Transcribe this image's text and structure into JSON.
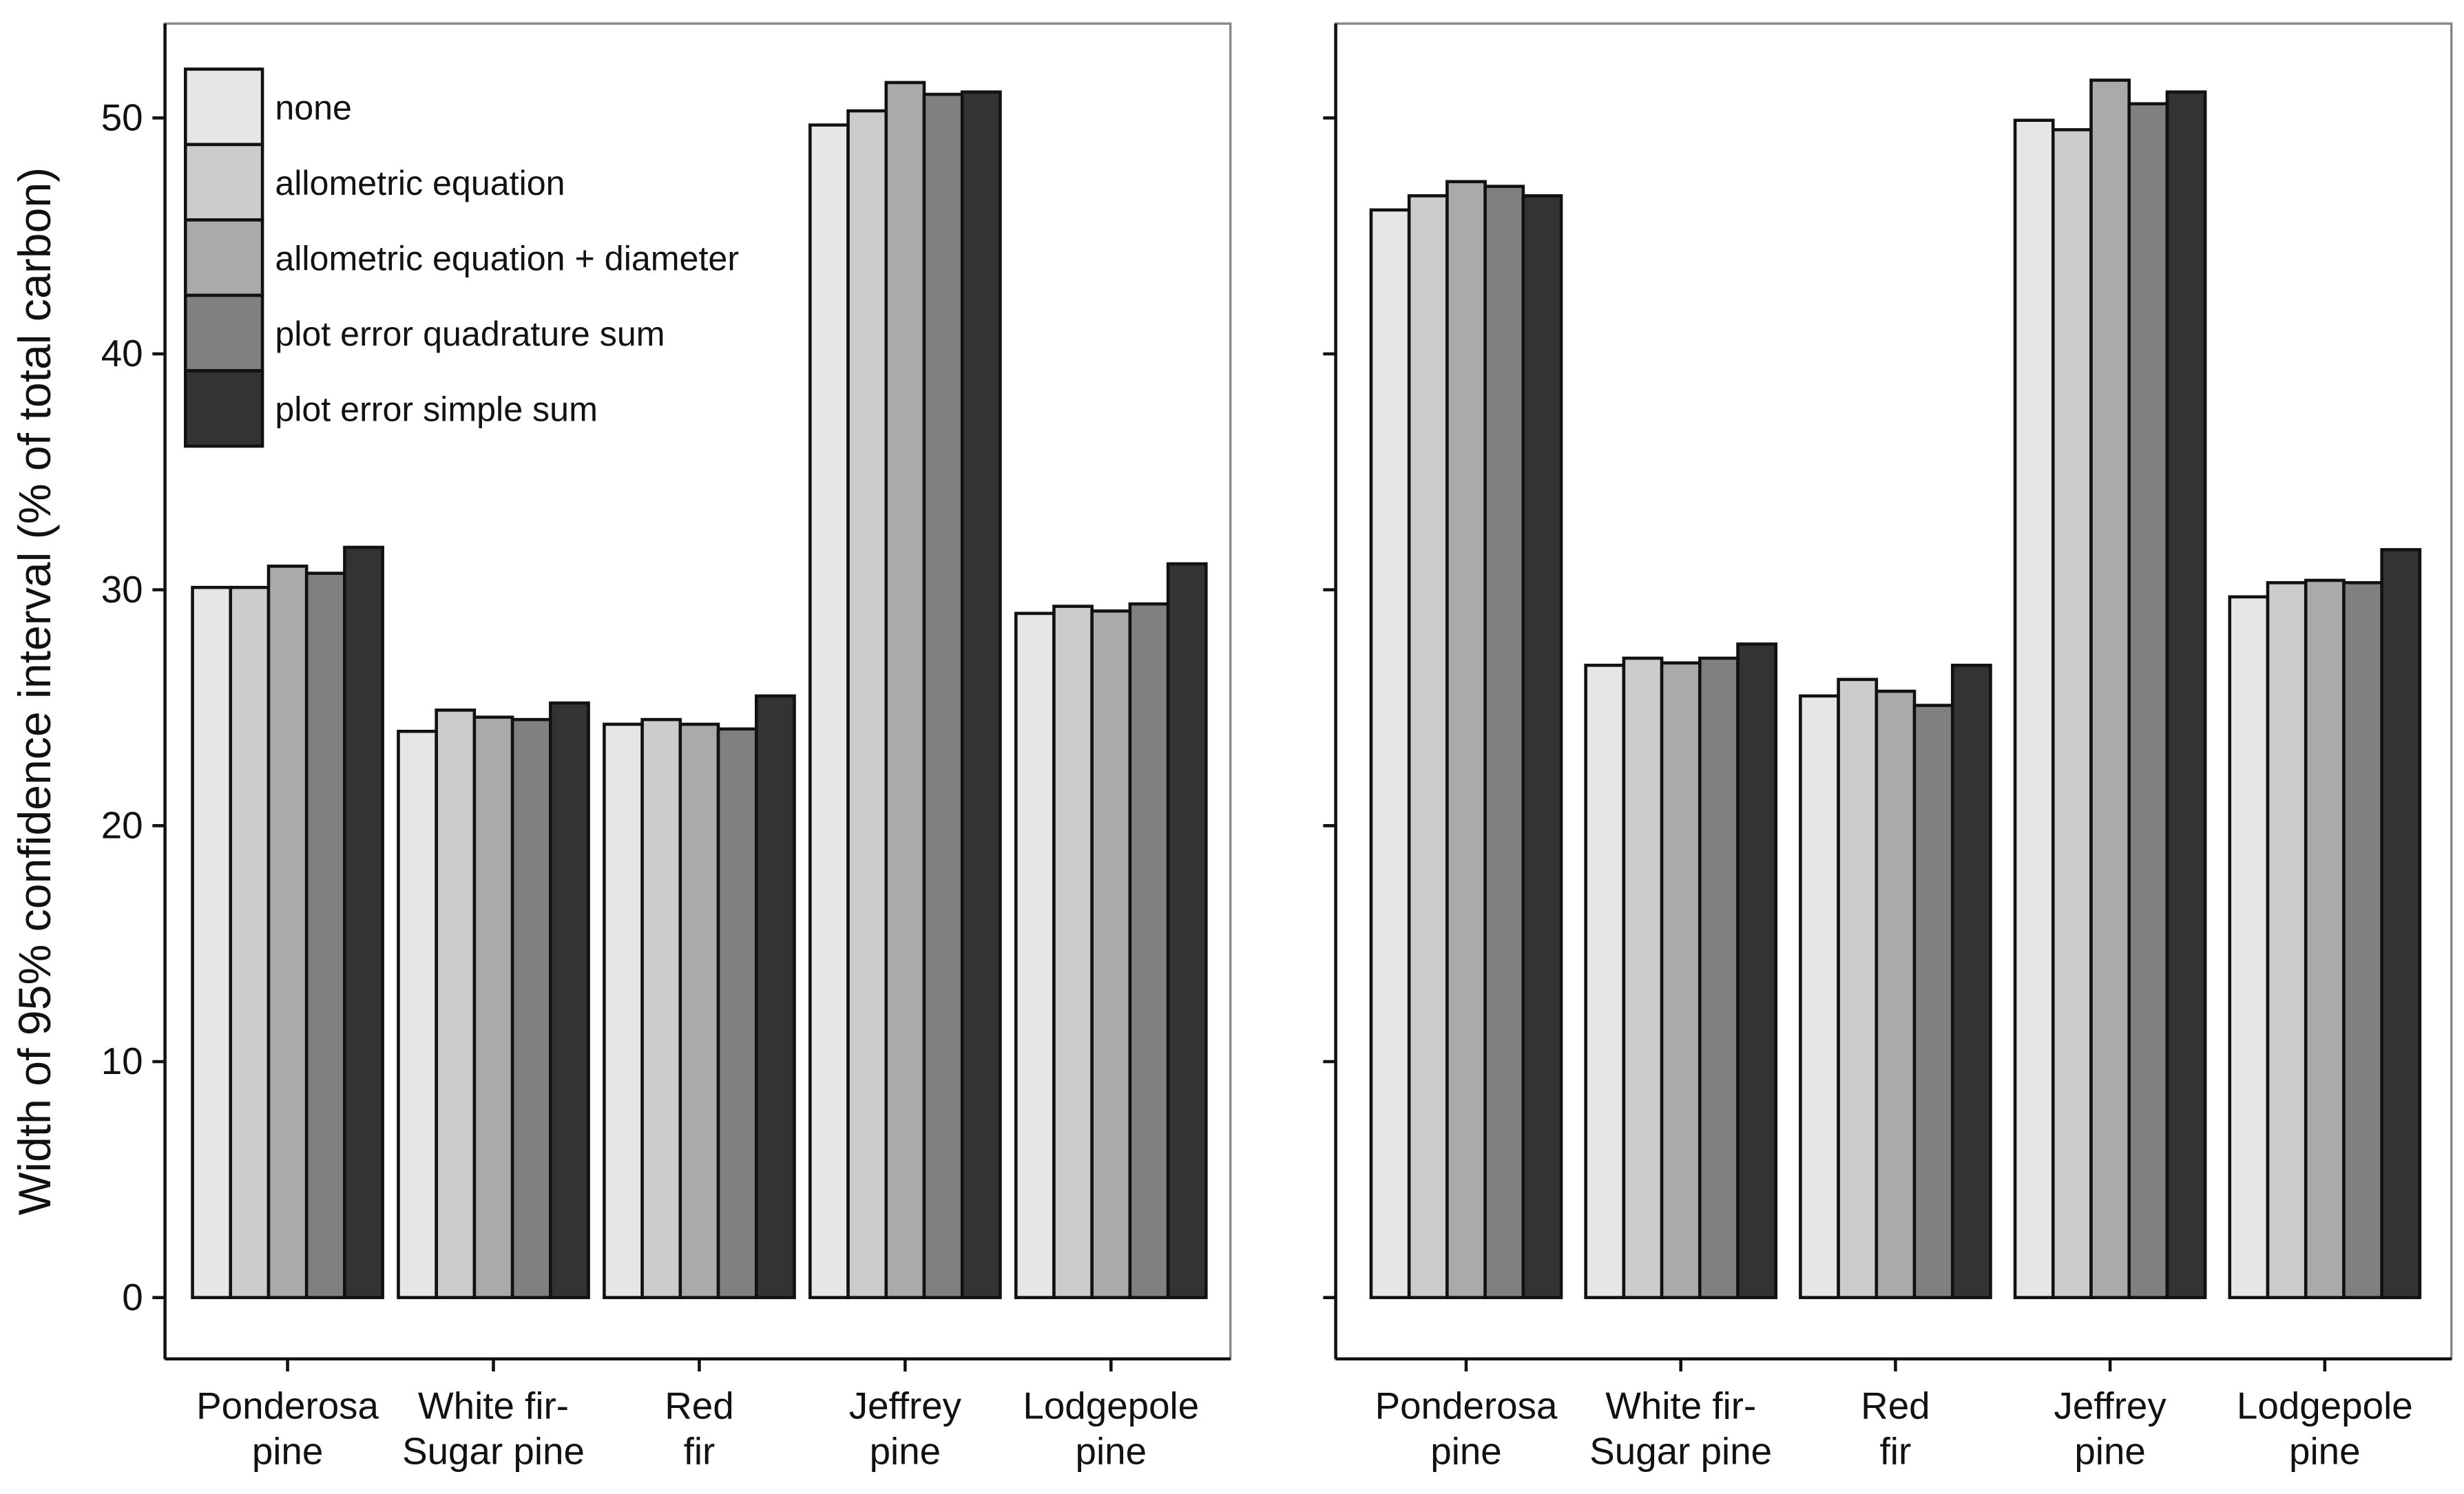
{
  "chart_data": [
    {
      "type": "bar",
      "y_label": "Width of 95% confidence interval (% of total carbon)",
      "categories": [
        "Ponderosa\npine",
        "White fir-\nSugar pine",
        "Red\nfir",
        "Jeffrey\npine",
        "Lodgepole\npine"
      ],
      "series": [
        {
          "name": "none",
          "color": "#e6e6e6",
          "values": [
            30.1,
            24.0,
            24.3,
            49.7,
            29.0
          ]
        },
        {
          "name": "allometric equation",
          "color": "#cccccc",
          "values": [
            30.1,
            24.9,
            24.5,
            50.3,
            29.3
          ]
        },
        {
          "name": "allometric equation + diameter",
          "color": "#aaaaaa",
          "values": [
            31.0,
            24.6,
            24.3,
            51.5,
            29.1
          ]
        },
        {
          "name": "plot error quadrature sum",
          "color": "#808080",
          "values": [
            30.7,
            24.5,
            24.1,
            51.0,
            29.4
          ]
        },
        {
          "name": "plot error simple sum",
          "color": "#333333",
          "values": [
            31.8,
            25.2,
            25.5,
            51.1,
            31.1
          ]
        }
      ],
      "ylim": [
        -2.6,
        54
      ],
      "yticks": [
        0,
        10,
        20,
        30,
        40,
        50
      ],
      "legend": "top-left"
    },
    {
      "type": "bar",
      "categories": [
        "Ponderosa\npine",
        "White fir-\nSugar pine",
        "Red\nfir",
        "Jeffrey\npine",
        "Lodgepole\npine"
      ],
      "series": [
        {
          "color": "#e6e6e6",
          "values": [
            46.1,
            26.8,
            25.5,
            49.9,
            29.7
          ]
        },
        {
          "color": "#cccccc",
          "values": [
            46.7,
            27.1,
            26.2,
            49.5,
            30.3
          ]
        },
        {
          "color": "#aaaaaa",
          "values": [
            47.3,
            26.9,
            25.7,
            51.6,
            30.4
          ]
        },
        {
          "color": "#808080",
          "values": [
            47.1,
            27.1,
            25.1,
            50.6,
            30.3
          ]
        },
        {
          "color": "#333333",
          "values": [
            46.7,
            27.7,
            26.8,
            51.1,
            31.7
          ]
        }
      ],
      "ylim": [
        -2.6,
        54
      ],
      "yticks": [
        0,
        10,
        20,
        30,
        40,
        50
      ]
    }
  ]
}
